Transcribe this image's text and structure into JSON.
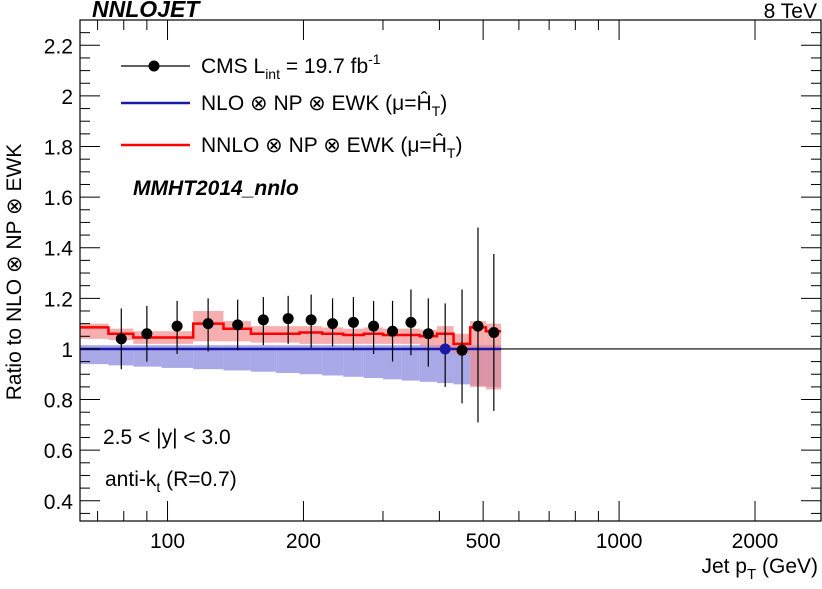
{
  "header": {
    "left_title": "NNLOJET",
    "right_title": "8 TeV"
  },
  "annotations": {
    "pdf_set": "MMHT2014_nnlo",
    "rapidity_prefix": "2.5 < |y| < 3.0",
    "algo_prefix": "anti-k",
    "algo_sub": "t",
    "algo_suffix": " (R=0.7)"
  },
  "legend": {
    "data": {
      "prefix": "CMS L",
      "sub": "int",
      "mid": " = 19.7 fb",
      "sup": "-1"
    },
    "nlo": {
      "prefix": "NLO ⊗ NP ⊗ EWK (μ=",
      "hat": "Ĥ",
      "sub": "T",
      "suffix": ")"
    },
    "nnlo": {
      "prefix": "NNLO ⊗ NP ⊗ EWK (μ=",
      "hat": "Ĥ",
      "sub": "T",
      "suffix": ")"
    }
  },
  "colors": {
    "nlo_line": "#1a1aaa",
    "nlo_band": "#8c8ce0",
    "nnlo_line": "#ff0000",
    "nnlo_band": "#f28c8c",
    "data": "#000000"
  },
  "chart_data": {
    "type": "scatter",
    "title": "",
    "xlabel_prefix": "Jet p",
    "xlabel_sub": "T",
    "xlabel_suffix": " (GeV)",
    "ylabel": "Ratio to NLO ⊗ NP ⊗ EWK",
    "xscale": "log",
    "xlim": [
      64,
      2800
    ],
    "ylim": [
      0.32,
      2.3
    ],
    "xticks": [
      100,
      200,
      500,
      1000,
      2000
    ],
    "xtick_labels": [
      "100",
      "200",
      "500",
      "1000",
      "2000"
    ],
    "yticks": [
      0.4,
      0.6,
      0.8,
      1.0,
      1.2,
      1.4,
      1.6,
      1.8,
      2.0,
      2.2
    ],
    "ytick_labels": [
      "0.4",
      "0.6",
      "0.8",
      "1",
      "1.2",
      "1.4",
      "1.6",
      "1.8",
      "2",
      "2.2"
    ],
    "bin_edges": [
      64,
      74,
      84,
      97,
      114,
      133,
      153,
      174,
      196,
      220,
      245,
      272,
      300,
      330,
      362,
      395,
      430,
      468,
      507,
      548
    ],
    "nlo": {
      "central": [
        1,
        1,
        1,
        1,
        1,
        1,
        1,
        1,
        1,
        1,
        1,
        1,
        1,
        1,
        1,
        1,
        1,
        1,
        1
      ],
      "band_low": [
        0.94,
        0.935,
        0.93,
        0.925,
        0.92,
        0.915,
        0.91,
        0.905,
        0.9,
        0.895,
        0.89,
        0.885,
        0.88,
        0.875,
        0.87,
        0.865,
        0.86,
        0.855,
        0.85
      ],
      "band_high": [
        1.015,
        1.015,
        1.015,
        1.015,
        1.015,
        1.015,
        1.015,
        1.015,
        1.015,
        1.015,
        1.015,
        1.015,
        1.015,
        1.015,
        1.015,
        1.015,
        1.015,
        1.015,
        1.015
      ]
    },
    "nnlo": {
      "central": [
        1.085,
        1.06,
        1.045,
        1.045,
        1.1,
        1.08,
        1.06,
        1.06,
        1.065,
        1.06,
        1.055,
        1.06,
        1.055,
        1.055,
        1.05,
        1.06,
        1.02,
        1.085,
        1.07
      ],
      "band_low": [
        1.04,
        1.035,
        1.02,
        1.02,
        1.03,
        1.03,
        1.025,
        1.025,
        1.02,
        1.02,
        1.02,
        1.02,
        1.02,
        1.02,
        1.01,
        0.99,
        0.98,
        0.85,
        0.84
      ],
      "band_high": [
        1.1,
        1.08,
        1.07,
        1.07,
        1.15,
        1.11,
        1.09,
        1.09,
        1.09,
        1.085,
        1.08,
        1.085,
        1.08,
        1.08,
        1.075,
        1.09,
        1.06,
        1.11,
        1.1
      ]
    },
    "cms": {
      "x": [
        79,
        90,
        105,
        123,
        143,
        163,
        185,
        208,
        232,
        258,
        286,
        315,
        346,
        378,
        412,
        449,
        487,
        528
      ],
      "y": [
        1.04,
        1.06,
        1.09,
        1.1,
        1.095,
        1.115,
        1.12,
        1.115,
        1.1,
        1.105,
        1.09,
        1.07,
        1.105,
        1.06,
        1.0,
        0.995,
        1.09,
        1.065
      ],
      "err_low": [
        0.12,
        0.11,
        0.11,
        0.11,
        0.1,
        0.1,
        0.1,
        0.11,
        0.09,
        0.11,
        0.11,
        0.12,
        0.13,
        0.13,
        0.15,
        0.21,
        0.38,
        0.31
      ],
      "err_high": [
        0.12,
        0.11,
        0.1,
        0.1,
        0.1,
        0.09,
        0.09,
        0.1,
        0.1,
        0.1,
        0.1,
        0.12,
        0.13,
        0.14,
        0.18,
        0.24,
        0.39,
        0.31
      ],
      "highlight_index": 14
    }
  }
}
